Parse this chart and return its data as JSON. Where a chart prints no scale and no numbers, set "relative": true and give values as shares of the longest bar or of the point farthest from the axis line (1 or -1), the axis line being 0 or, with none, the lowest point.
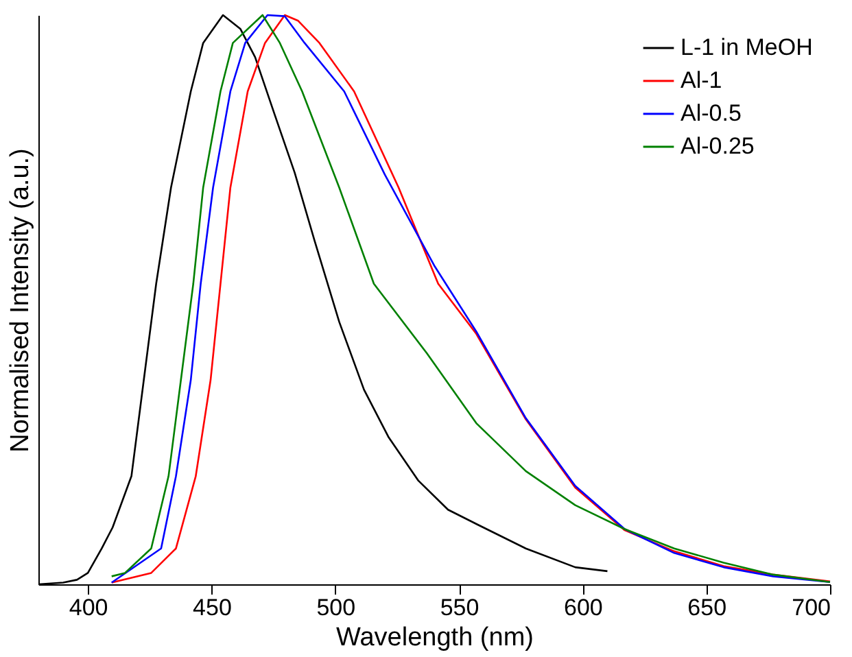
{
  "chart_data": {
    "type": "line",
    "xlabel": "Wavelength (nm)",
    "ylabel": "Normalised Intensity (a.u.)",
    "relative": true,
    "xlim": [
      380,
      700
    ],
    "xticks": [
      400,
      450,
      500,
      550,
      600,
      650,
      700
    ],
    "grid": false,
    "legend": "top right",
    "marker": "none",
    "line_style": "solid",
    "series": [
      {
        "name": "L-1 in MeOH",
        "color": "#000000",
        "x": [
          380,
          390,
          395.6,
          400,
          405.6,
          410,
          417.6,
          422.6,
          427.6,
          433.6,
          441.6,
          446.6,
          454.6,
          461.6,
          467.6,
          475.6,
          483.6,
          491.6,
          501.6,
          511.6,
          521.6,
          533.6,
          545.6,
          557,
          577,
          597,
          610
        ],
        "values": [
          0,
          0.003,
          0.008,
          0.02,
          0.063,
          0.1,
          0.19,
          0.359,
          0.528,
          0.697,
          0.866,
          0.951,
          1.0,
          0.976,
          0.926,
          0.824,
          0.723,
          0.604,
          0.461,
          0.342,
          0.258,
          0.182,
          0.131,
          0.106,
          0.063,
          0.03,
          0.023
        ]
      },
      {
        "name": "Al-1",
        "color": "#ff0000",
        "x": [
          409.6,
          425.6,
          435.6,
          443.6,
          449.6,
          453.6,
          457.6,
          464.6,
          471.6,
          479.6,
          485,
          493.6,
          507.6,
          525.6,
          541.6,
          557,
          577,
          597,
          617,
          637,
          657,
          677,
          700
        ],
        "values": [
          0.003,
          0.02,
          0.063,
          0.19,
          0.359,
          0.528,
          0.697,
          0.866,
          0.951,
          1.0,
          0.99,
          0.951,
          0.866,
          0.697,
          0.528,
          0.44,
          0.29,
          0.17,
          0.095,
          0.058,
          0.032,
          0.017,
          0.005
        ]
      },
      {
        "name": "Al-0.5",
        "color": "#0000ff",
        "x": [
          409.6,
          429.6,
          435.6,
          441.6,
          445.6,
          450.6,
          457.6,
          463.6,
          472.6,
          479.6,
          487.6,
          503.6,
          520,
          540,
          557,
          577,
          597,
          617,
          637,
          657,
          677,
          700
        ],
        "values": [
          0.003,
          0.063,
          0.19,
          0.359,
          0.528,
          0.697,
          0.866,
          0.951,
          1.0,
          0.998,
          0.951,
          0.866,
          0.72,
          0.56,
          0.444,
          0.292,
          0.173,
          0.097,
          0.055,
          0.03,
          0.014,
          0.004
        ]
      },
      {
        "name": "Al-0.25",
        "color": "#008000",
        "x": [
          409.6,
          415,
          425.6,
          432.6,
          437.6,
          442.6,
          446.6,
          453.6,
          458.6,
          470.6,
          477.6,
          486.6,
          501.6,
          515.6,
          537,
          557,
          577,
          597,
          617,
          637,
          657,
          677,
          700
        ],
        "values": [
          0.014,
          0.02,
          0.063,
          0.19,
          0.359,
          0.528,
          0.697,
          0.866,
          0.951,
          1.0,
          0.951,
          0.866,
          0.697,
          0.528,
          0.406,
          0.283,
          0.199,
          0.139,
          0.097,
          0.063,
          0.038,
          0.017,
          0.004
        ]
      }
    ]
  }
}
